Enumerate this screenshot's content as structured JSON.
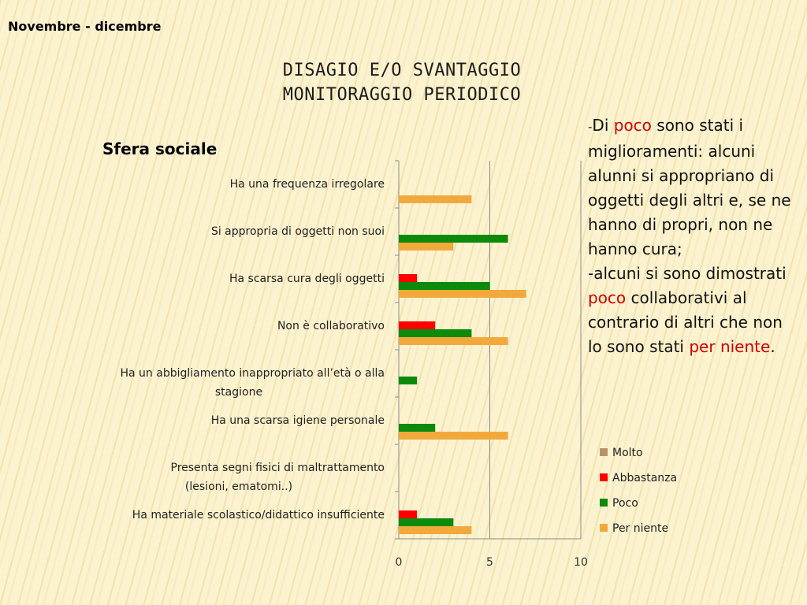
{
  "header": "Novembre - dicembre",
  "title": {
    "line1": "DISAGIO E/O SVANTAGGIO",
    "line2": "MONITORAGGIO PERIODICO"
  },
  "section_title": "Sfera sociale",
  "commentary": {
    "p1_dash": "-",
    "p1_a": "Di ",
    "p1_red": "poco",
    "p1_b": " sono stati i miglioramenti: alcuni alunni si appropriano di oggetti degli altri e, se ne hanno di propri, non ne hanno cura;",
    "p2_a": "-alcuni si sono dimostrati ",
    "p2_red": "poco",
    "p2_b": " collaborativi al contrario di altri che non lo sono stati ",
    "p2_red2": "per niente",
    "p2_c": "."
  },
  "chart_data": {
    "type": "bar",
    "orientation": "horizontal",
    "categories": [
      [
        "Ha una frequenza irregolare"
      ],
      [
        "Si appropria di oggetti non suoi"
      ],
      [
        "Ha scarsa cura degli oggetti"
      ],
      [
        "Non è collaborativo"
      ],
      [
        "Ha un abbigliamento inappropriato all’età o alla",
        "stagione"
      ],
      [
        "Ha una scarsa igiene personale"
      ],
      [
        "Presenta segni fisici di maltrattamento",
        "(lesioni, ematomi..)"
      ],
      [
        "Ha materiale scolastico/didattico insufficiente"
      ]
    ],
    "series": [
      {
        "name": "Molto",
        "color": "#b8946a",
        "values": [
          0,
          0,
          0,
          0,
          0,
          0,
          0,
          0
        ]
      },
      {
        "name": "Abbastanza",
        "color": "#ff0000",
        "values": [
          0,
          0,
          1,
          2,
          0,
          0,
          0,
          1
        ]
      },
      {
        "name": "Poco",
        "color": "#0b8a0b",
        "values": [
          0,
          6,
          5,
          4,
          1,
          2,
          0,
          3
        ]
      },
      {
        "name": "Per niente",
        "color": "#f2a93b",
        "values": [
          4,
          3,
          7,
          6,
          0,
          6,
          0,
          4
        ]
      }
    ],
    "xlim": [
      0,
      10
    ],
    "xticks": [
      "0",
      "5",
      "10"
    ],
    "grid": true,
    "legend_position": "right"
  }
}
